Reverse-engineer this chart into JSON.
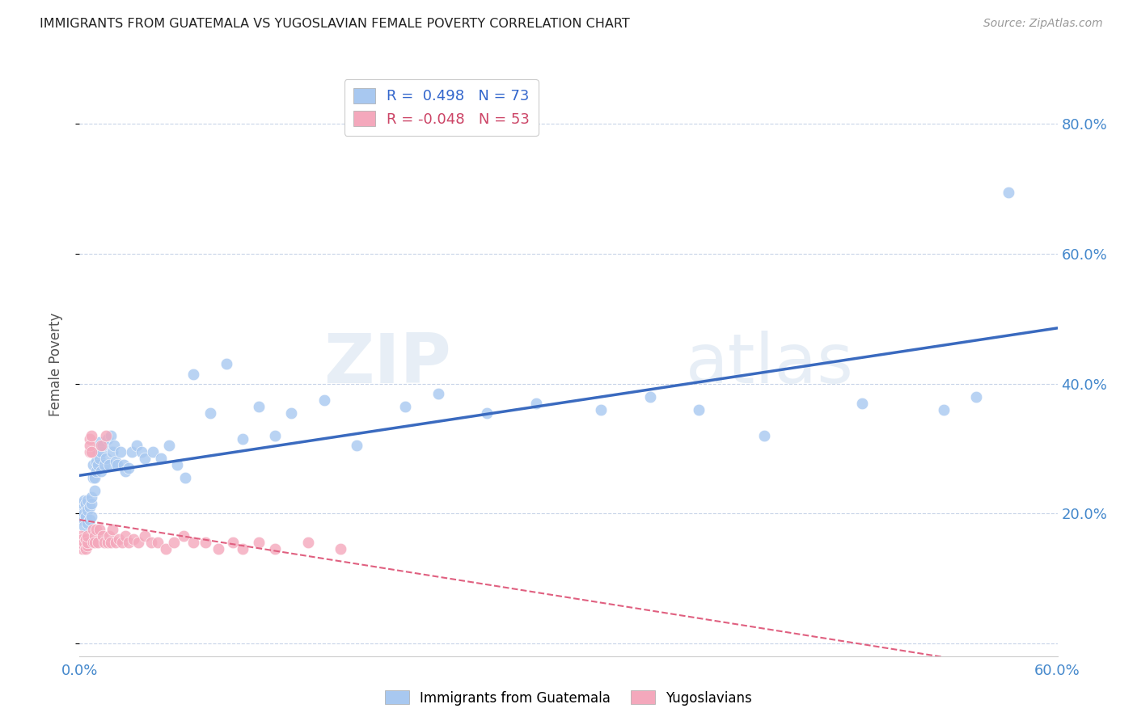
{
  "title": "IMMIGRANTS FROM GUATEMALA VS YUGOSLAVIAN FEMALE POVERTY CORRELATION CHART",
  "source": "Source: ZipAtlas.com",
  "ylabel": "Female Poverty",
  "legend_bottom": [
    "Immigrants from Guatemala",
    "Yugoslavians"
  ],
  "r_guatemala": 0.498,
  "n_guatemala": 73,
  "r_yugoslavian": -0.048,
  "n_yugoslavian": 53,
  "xlim": [
    0.0,
    0.6
  ],
  "ylim": [
    -0.02,
    0.88
  ],
  "yticks": [
    0.0,
    0.2,
    0.4,
    0.6,
    0.8
  ],
  "y_tick_labels": [
    "",
    "20.0%",
    "40.0%",
    "60.0%",
    "80.0%"
  ],
  "color_blue": "#a8c8f0",
  "color_pink": "#f4a8bc",
  "line_blue": "#3a6abf",
  "line_pink": "#e06080",
  "background": "#ffffff",
  "grid_color": "#c8d4e8",
  "guatemala_x": [
    0.001,
    0.001,
    0.002,
    0.002,
    0.003,
    0.003,
    0.003,
    0.004,
    0.004,
    0.005,
    0.005,
    0.005,
    0.006,
    0.006,
    0.007,
    0.007,
    0.007,
    0.008,
    0.008,
    0.009,
    0.009,
    0.01,
    0.01,
    0.011,
    0.011,
    0.012,
    0.012,
    0.013,
    0.013,
    0.014,
    0.015,
    0.016,
    0.017,
    0.018,
    0.019,
    0.02,
    0.021,
    0.022,
    0.023,
    0.025,
    0.027,
    0.028,
    0.03,
    0.032,
    0.035,
    0.038,
    0.04,
    0.045,
    0.05,
    0.055,
    0.06,
    0.065,
    0.07,
    0.08,
    0.09,
    0.1,
    0.11,
    0.12,
    0.13,
    0.15,
    0.17,
    0.2,
    0.22,
    0.25,
    0.28,
    0.32,
    0.35,
    0.38,
    0.42,
    0.48,
    0.53,
    0.55,
    0.57
  ],
  "guatemala_y": [
    0.195,
    0.205,
    0.19,
    0.215,
    0.18,
    0.2,
    0.22,
    0.195,
    0.215,
    0.185,
    0.205,
    0.22,
    0.19,
    0.21,
    0.195,
    0.215,
    0.225,
    0.255,
    0.275,
    0.235,
    0.255,
    0.265,
    0.28,
    0.275,
    0.295,
    0.285,
    0.31,
    0.265,
    0.295,
    0.305,
    0.275,
    0.285,
    0.315,
    0.275,
    0.32,
    0.295,
    0.305,
    0.28,
    0.275,
    0.295,
    0.275,
    0.265,
    0.27,
    0.295,
    0.305,
    0.295,
    0.285,
    0.295,
    0.285,
    0.305,
    0.275,
    0.255,
    0.415,
    0.355,
    0.43,
    0.315,
    0.365,
    0.32,
    0.355,
    0.375,
    0.305,
    0.365,
    0.385,
    0.355,
    0.37,
    0.36,
    0.38,
    0.36,
    0.32,
    0.37,
    0.36,
    0.38,
    0.695
  ],
  "yugoslavian_x": [
    0.001,
    0.001,
    0.002,
    0.002,
    0.003,
    0.003,
    0.004,
    0.004,
    0.005,
    0.005,
    0.005,
    0.006,
    0.006,
    0.006,
    0.007,
    0.007,
    0.008,
    0.008,
    0.009,
    0.009,
    0.01,
    0.011,
    0.012,
    0.013,
    0.014,
    0.015,
    0.016,
    0.017,
    0.018,
    0.019,
    0.02,
    0.022,
    0.024,
    0.026,
    0.028,
    0.03,
    0.033,
    0.036,
    0.04,
    0.044,
    0.048,
    0.053,
    0.058,
    0.064,
    0.07,
    0.077,
    0.085,
    0.094,
    0.1,
    0.11,
    0.12,
    0.14,
    0.16
  ],
  "yugoslavian_y": [
    0.155,
    0.165,
    0.145,
    0.16,
    0.15,
    0.155,
    0.145,
    0.16,
    0.15,
    0.155,
    0.165,
    0.315,
    0.295,
    0.305,
    0.32,
    0.295,
    0.175,
    0.155,
    0.165,
    0.155,
    0.175,
    0.155,
    0.175,
    0.305,
    0.165,
    0.155,
    0.32,
    0.155,
    0.165,
    0.155,
    0.175,
    0.155,
    0.16,
    0.155,
    0.165,
    0.155,
    0.16,
    0.155,
    0.165,
    0.155,
    0.155,
    0.145,
    0.155,
    0.165,
    0.155,
    0.155,
    0.145,
    0.155,
    0.145,
    0.155,
    0.145,
    0.155,
    0.145
  ]
}
